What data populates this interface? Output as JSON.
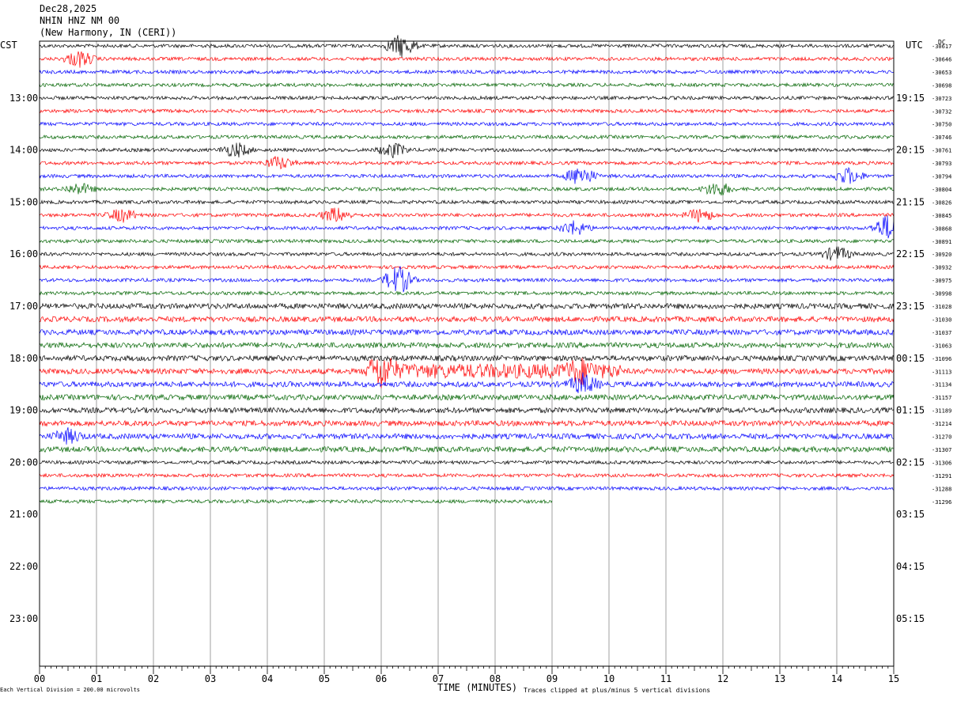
{
  "header": {
    "date": "Dec28,2025",
    "station": "NHIN HNZ NM 00",
    "location": "(New Harmony, IN (CERI))"
  },
  "left_timezone": "CST",
  "right_timezone": "UTC",
  "dc_label": "DC",
  "footer": {
    "xlabel": "TIME (MINUTES)",
    "scale_note": "Each Vertical Division =  200.00 microvolts",
    "clip_note": "Traces clipped at plus/minus 5 vertical divisions"
  },
  "colors": [
    "#000000",
    "#ff0000",
    "#0000ff",
    "#006400"
  ],
  "chart_data": {
    "type": "line",
    "title": "NHIN HNZ NM 00",
    "xlabel": "TIME (MINUTES)",
    "xlim": [
      0,
      15
    ],
    "x_ticks": [
      "00",
      "01",
      "02",
      "03",
      "04",
      "05",
      "06",
      "07",
      "08",
      "09",
      "10",
      "11",
      "12",
      "13",
      "14",
      "15"
    ],
    "left_hour_labels": [
      "13:00",
      "14:00",
      "15:00",
      "16:00",
      "17:00",
      "18:00",
      "19:00",
      "20:00",
      "21:00",
      "22:00",
      "23:00"
    ],
    "right_hour_labels": [
      "19:15",
      "20:15",
      "21:15",
      "22:15",
      "23:15",
      "00:15",
      "01:15",
      "02:15",
      "03:15",
      "04:15",
      "05:15"
    ],
    "trace_interval_minutes": 15,
    "trace_count_drawn": 36,
    "last_trace_end_minute": 9.0,
    "dc_offsets": [
      "-30617",
      "-30646",
      "-30653",
      "-30698",
      "-30723",
      "-30732",
      "-30750",
      "-30746",
      "-30761",
      "-30793",
      "-30794",
      "-30804",
      "-30826",
      "-30845",
      "-30868",
      "-30891",
      "-30920",
      "-30932",
      "-30975",
      "-30998",
      "-31028",
      "-31030",
      "-31037",
      "-31063",
      "-31096",
      "-31113",
      "-31134",
      "-31157",
      "-31189",
      "-31214",
      "-31270",
      "-31307",
      "-31306",
      "-31291",
      "-31288",
      "-31296"
    ]
  }
}
